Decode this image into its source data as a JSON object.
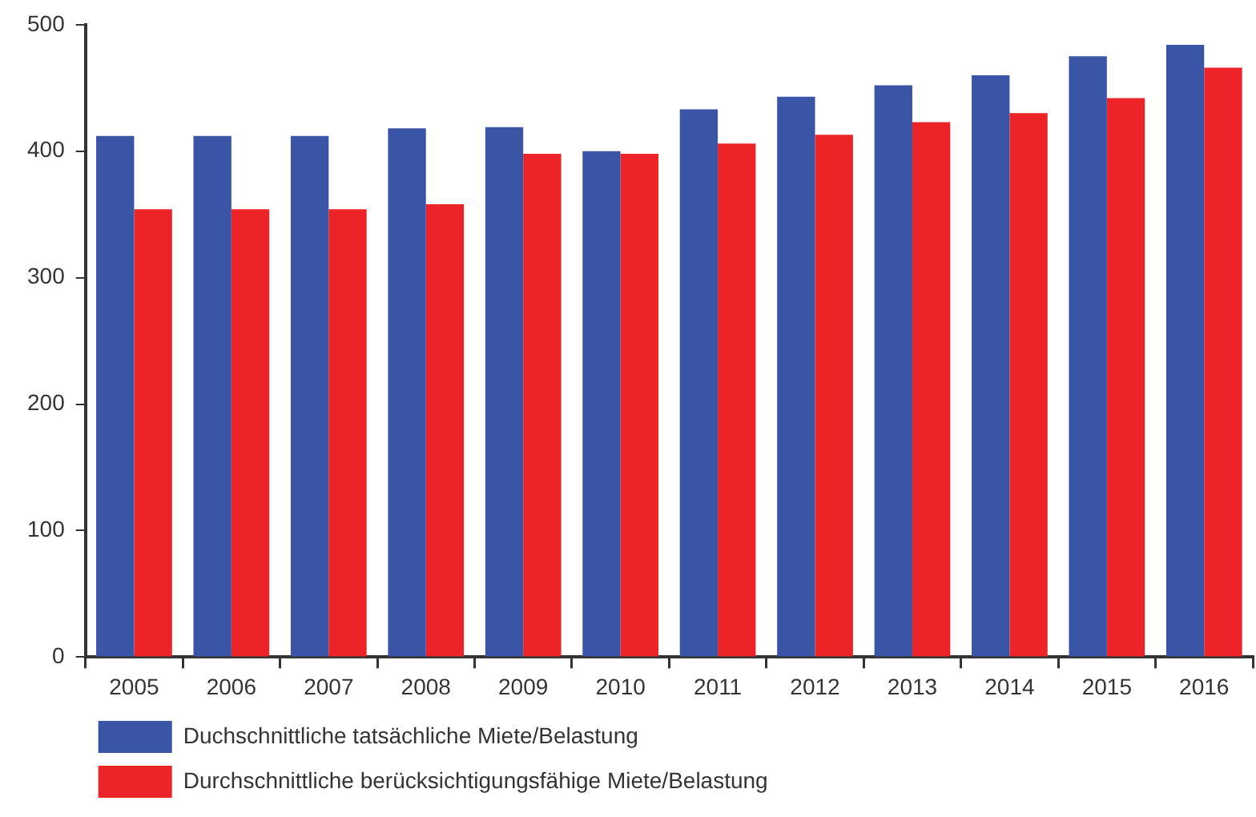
{
  "chart_data": {
    "type": "bar",
    "categories": [
      "2005",
      "2006",
      "2007",
      "2008",
      "2009",
      "2010",
      "2011",
      "2012",
      "2013",
      "2014",
      "2015",
      "2016"
    ],
    "series": [
      {
        "name": "Duchschnittliche tatsächliche Miete/Belastung",
        "color": "#3a55a5",
        "values": [
          412,
          412,
          412,
          418,
          419,
          400,
          433,
          443,
          452,
          460,
          475,
          484
        ]
      },
      {
        "name": "Durchschnittliche berücksichtigungsfähige Miete/Belastung",
        "color": "#ec2428",
        "values": [
          354,
          354,
          354,
          358,
          398,
          398,
          406,
          413,
          423,
          430,
          442,
          466
        ]
      }
    ],
    "ylim": [
      0,
      500
    ],
    "yticks": [
      0,
      100,
      200,
      300,
      400,
      500
    ],
    "grid": false,
    "legend": "bottom left"
  }
}
